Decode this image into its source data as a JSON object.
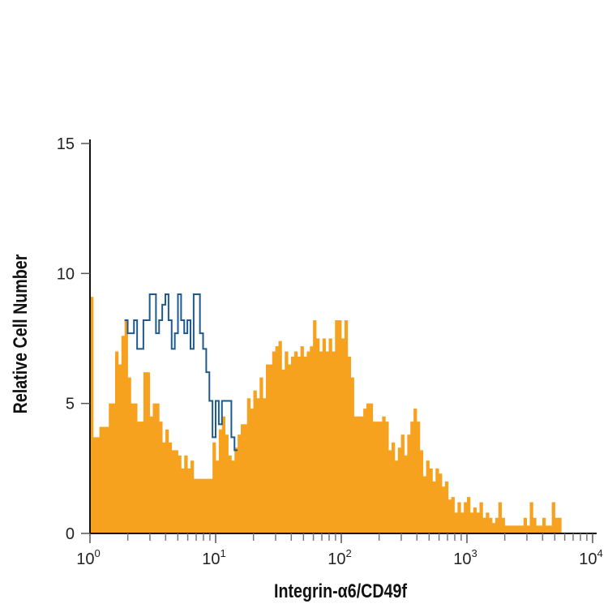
{
  "chart_data": {
    "type": "histogram",
    "xlabel": "Integrin-α6/CD49f",
    "ylabel": "Relative Cell Number",
    "x_scale": "log",
    "xlim": [
      1,
      10000
    ],
    "ylim": [
      0,
      15
    ],
    "x_ticks": [
      {
        "base": "10",
        "exp": "0"
      },
      {
        "base": "10",
        "exp": "1"
      },
      {
        "base": "10",
        "exp": "2"
      },
      {
        "base": "10",
        "exp": "3"
      },
      {
        "base": "10",
        "exp": "4"
      }
    ],
    "y_ticks": [
      "0",
      "5",
      "10",
      "15"
    ],
    "grid": false,
    "legend": "none",
    "bin_width_log10": 0.025,
    "series": [
      {
        "style": "filled",
        "color": "#F7A21E",
        "x_start": 1,
        "values": [
          9.1,
          3.7,
          3.7,
          4.1,
          4.1,
          4.1,
          5.0,
          5.0,
          7.0,
          6.5,
          7.6,
          8.2,
          6.0,
          5.0,
          5.0,
          4.3,
          4.3,
          6.2,
          6.2,
          4.5,
          5.0,
          5.0,
          4.3,
          3.5,
          4.0,
          3.5,
          3.2,
          3.2,
          3.0,
          2.5,
          3.0,
          2.5,
          2.8,
          2.1,
          2.1,
          2.1,
          2.1,
          2.1,
          2.1,
          3.5,
          2.8,
          4.0,
          4.5,
          3.8,
          3.0,
          2.8,
          3.3,
          3.8,
          4.2,
          4.2,
          5.2,
          4.8,
          5.5,
          5.2,
          6.0,
          5.2,
          6.5,
          6.5,
          7.0,
          7.2,
          7.4,
          6.3,
          7.0,
          6.5,
          6.8,
          7.0,
          6.8,
          7.2,
          6.8,
          7.0,
          7.2,
          8.2,
          7.5,
          7.0,
          7.5,
          7.0,
          7.5,
          7.0,
          8.2,
          8.2,
          7.5,
          8.2,
          6.8,
          6.0,
          4.5,
          4.5,
          4.5,
          4.8,
          5.0,
          5.0,
          4.3,
          4.3,
          4.3,
          4.5,
          4.3,
          3.2,
          3.5,
          2.8,
          3.3,
          3.8,
          3.0,
          3.8,
          4.3,
          4.8,
          4.3,
          3.2,
          2.2,
          2.8,
          2.5,
          2.0,
          2.5,
          2.3,
          1.8,
          2.0,
          1.3,
          1.4,
          0.8,
          1.2,
          0.8,
          1.2,
          1.4,
          0.8,
          1.0,
          0.8,
          1.2,
          0.6,
          0.8,
          0.6,
          0.4,
          0.6,
          1.2,
          0.6,
          0.3,
          0.3,
          0.3,
          0.3,
          0.3,
          0.3,
          0.6,
          0.3,
          1.2,
          0.6,
          0.3,
          0.3,
          0.6,
          0.3,
          0.3,
          1.2,
          0.6,
          0.6
        ]
      },
      {
        "style": "outline",
        "color": "#1F5A8E",
        "x_start": 1.884,
        "values": [
          8.2,
          7.7,
          7.7,
          8.2,
          7.1,
          7.1,
          8.2,
          8.2,
          9.2,
          9.2,
          7.7,
          8.2,
          8.8,
          9.2,
          8.2,
          7.1,
          7.7,
          9.2,
          8.2,
          7.7,
          8.2,
          7.1,
          9.2,
          9.2,
          7.7,
          7.1,
          6.2,
          5.1,
          3.7,
          5.1,
          4.2,
          5.1,
          5.1,
          5.1,
          3.7,
          3.2
        ]
      }
    ]
  }
}
